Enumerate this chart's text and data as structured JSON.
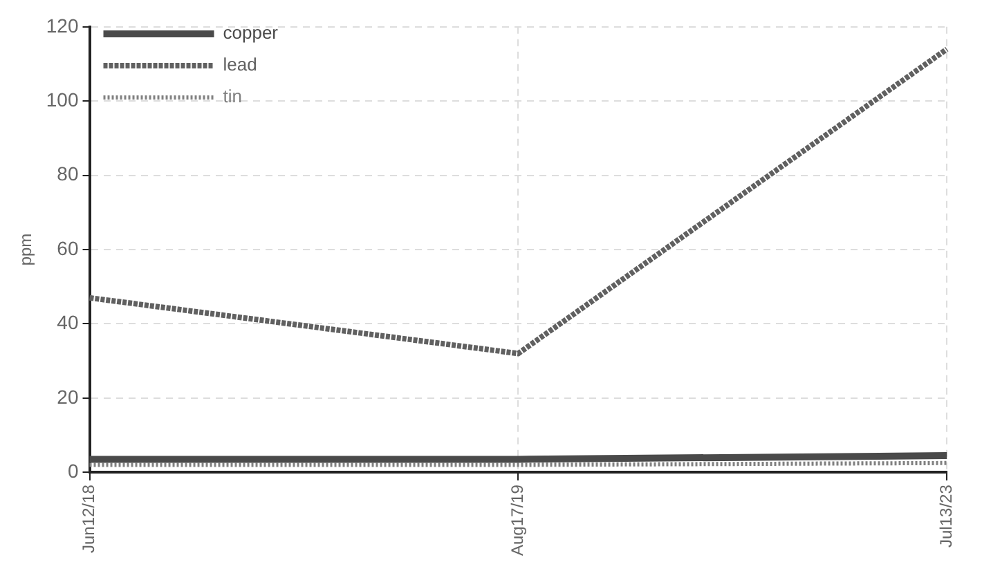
{
  "chart_data": {
    "type": "line",
    "ylabel": "ppm",
    "categories": [
      "Jun12/18",
      "Aug17/19",
      "Jul13/23"
    ],
    "series": [
      {
        "name": "copper",
        "color": "#4a4a4a",
        "line_style": "solid",
        "values": [
          3.5,
          3.5,
          4.5
        ]
      },
      {
        "name": "lead",
        "color": "#606060",
        "line_style": "dashed",
        "values": [
          47,
          32,
          114
        ]
      },
      {
        "name": "tin",
        "color": "#808080",
        "line_style": "dotted",
        "values": [
          2,
          2,
          2.5
        ]
      }
    ],
    "ylim": [
      0,
      120
    ],
    "yticks": [
      0,
      20,
      40,
      60,
      80,
      100,
      120
    ],
    "grid": true,
    "legend": "top left",
    "marker": "none"
  }
}
